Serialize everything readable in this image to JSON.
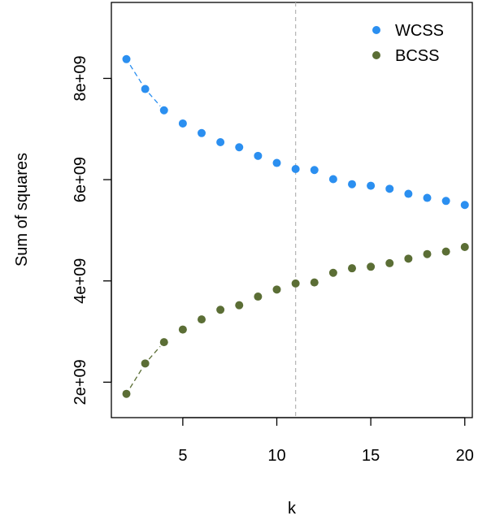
{
  "chart_data": {
    "type": "scatter",
    "xlabel": "k",
    "ylabel": "Sum of squares",
    "xlim": [
      1.2,
      20.4
    ],
    "ylim": [
      1300000000,
      9500000000
    ],
    "x_ticks": [
      5,
      10,
      15,
      20
    ],
    "x_tick_labels": [
      "5",
      "10",
      "15",
      "20"
    ],
    "y_ticks": [
      2000000000,
      4000000000,
      6000000000,
      8000000000
    ],
    "y_tick_labels": [
      "2e+09",
      "4e+09",
      "6e+09",
      "8e+09"
    ],
    "vline": 11,
    "legend_position": "top-right",
    "grid": false,
    "x": [
      2,
      3,
      4,
      5,
      6,
      7,
      8,
      9,
      10,
      11,
      12,
      13,
      14,
      15,
      16,
      17,
      18,
      19,
      20
    ],
    "series": [
      {
        "name": "WCSS",
        "color": "#2b8ff0",
        "values": [
          8380000000,
          7790000000,
          7370000000,
          7110000000,
          6920000000,
          6740000000,
          6640000000,
          6470000000,
          6330000000,
          6210000000,
          6190000000,
          6010000000,
          5910000000,
          5880000000,
          5820000000,
          5720000000,
          5640000000,
          5580000000,
          5500000000
        ]
      },
      {
        "name": "BCSS",
        "color": "#5b6e35",
        "values": [
          1770000000,
          2370000000,
          2790000000,
          3040000000,
          3240000000,
          3430000000,
          3520000000,
          3690000000,
          3830000000,
          3950000000,
          3970000000,
          4160000000,
          4250000000,
          4280000000,
          4350000000,
          4440000000,
          4530000000,
          4580000000,
          4670000000
        ]
      }
    ]
  }
}
